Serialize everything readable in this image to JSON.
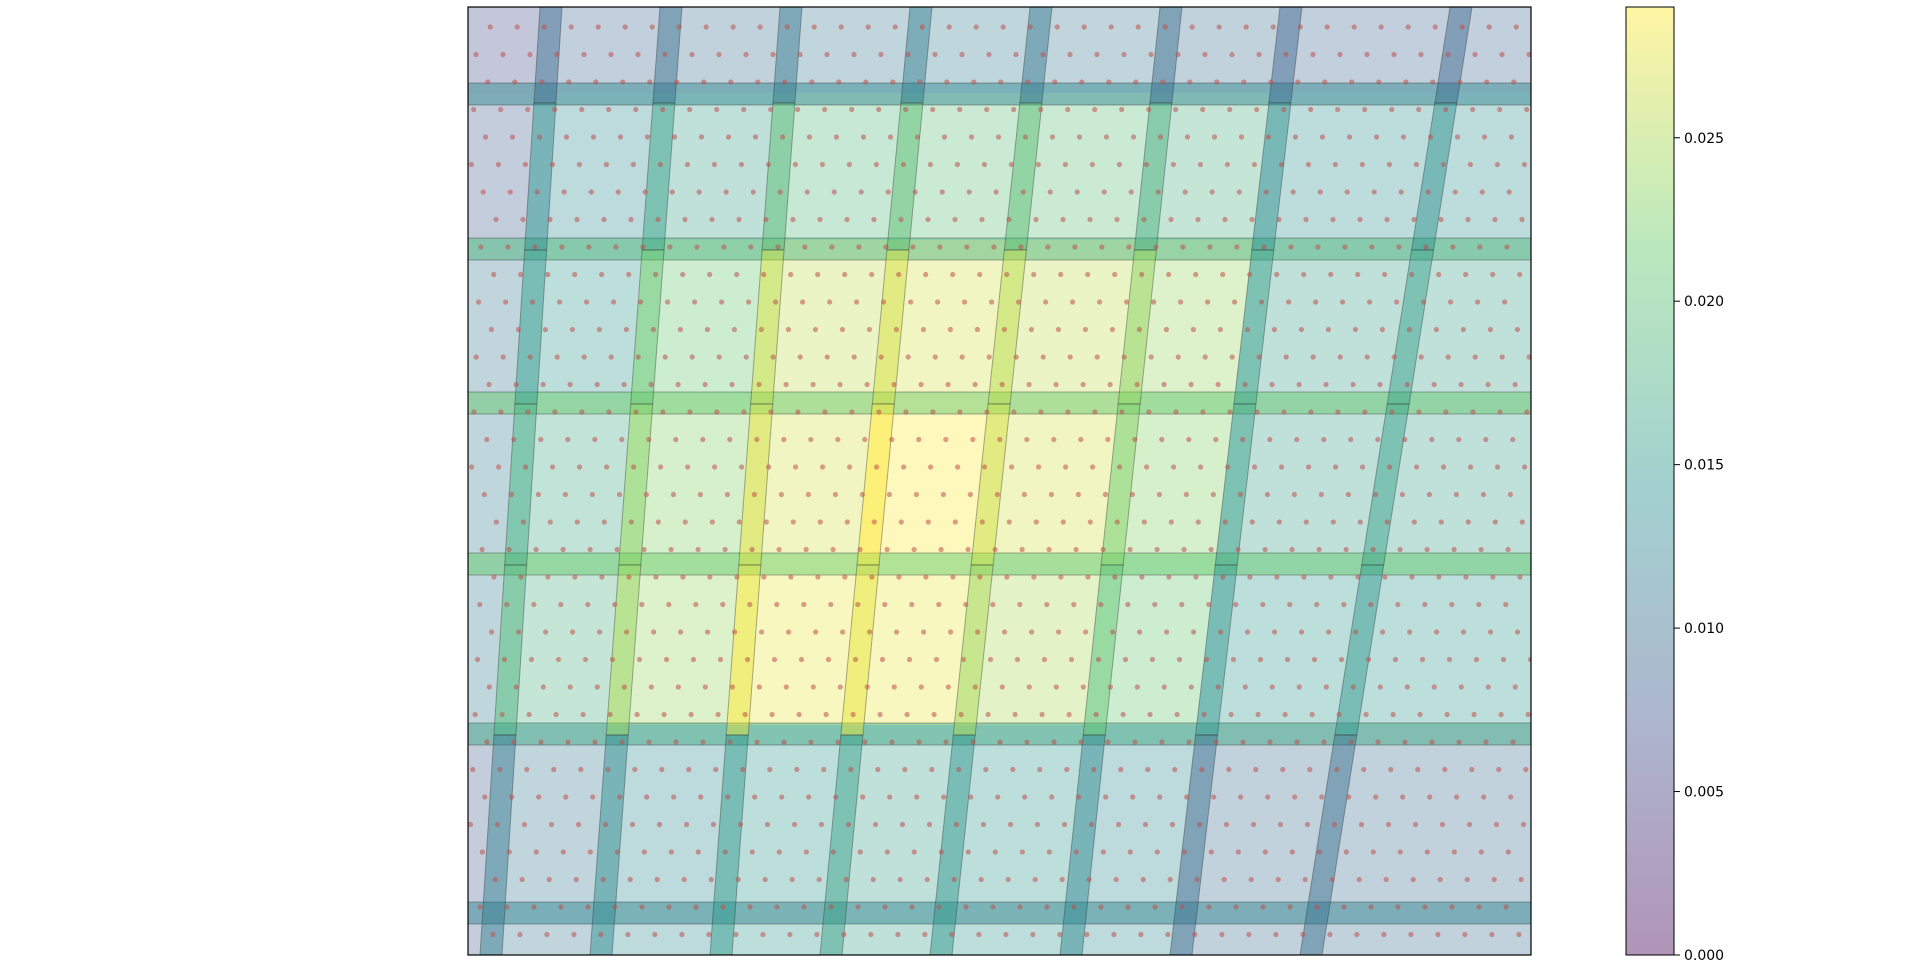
{
  "chart_data": {
    "type": "heatmap",
    "title": "",
    "xlabel": "",
    "ylabel": "",
    "grid": false,
    "colormap": "viridis",
    "alpha": 0.3,
    "clim": [
      0,
      0.029
    ],
    "colorbar": {
      "ticks": [
        0.0,
        0.005,
        0.01,
        0.015,
        0.02,
        0.025
      ],
      "tick_labels": [
        "0.000",
        "0.005",
        "0.010",
        "0.015",
        "0.020",
        "0.025"
      ]
    },
    "grid_size": {
      "rows": 6,
      "cols": 8
    },
    "values": [
      [
        0.006,
        0.009,
        0.01,
        0.011,
        0.012,
        0.011,
        0.01,
        0.009
      ],
      [
        0.008,
        0.013,
        0.016,
        0.019,
        0.02,
        0.02,
        0.018,
        0.014
      ],
      [
        0.011,
        0.015,
        0.021,
        0.026,
        0.027,
        0.026,
        0.024,
        0.016
      ],
      [
        0.012,
        0.017,
        0.023,
        0.027,
        0.029,
        0.027,
        0.023,
        0.016
      ],
      [
        0.012,
        0.018,
        0.024,
        0.028,
        0.028,
        0.025,
        0.021,
        0.015
      ],
      [
        0.008,
        0.011,
        0.013,
        0.015,
        0.016,
        0.015,
        0.013,
        0.01
      ]
    ],
    "point_color": "#c0504d"
  }
}
